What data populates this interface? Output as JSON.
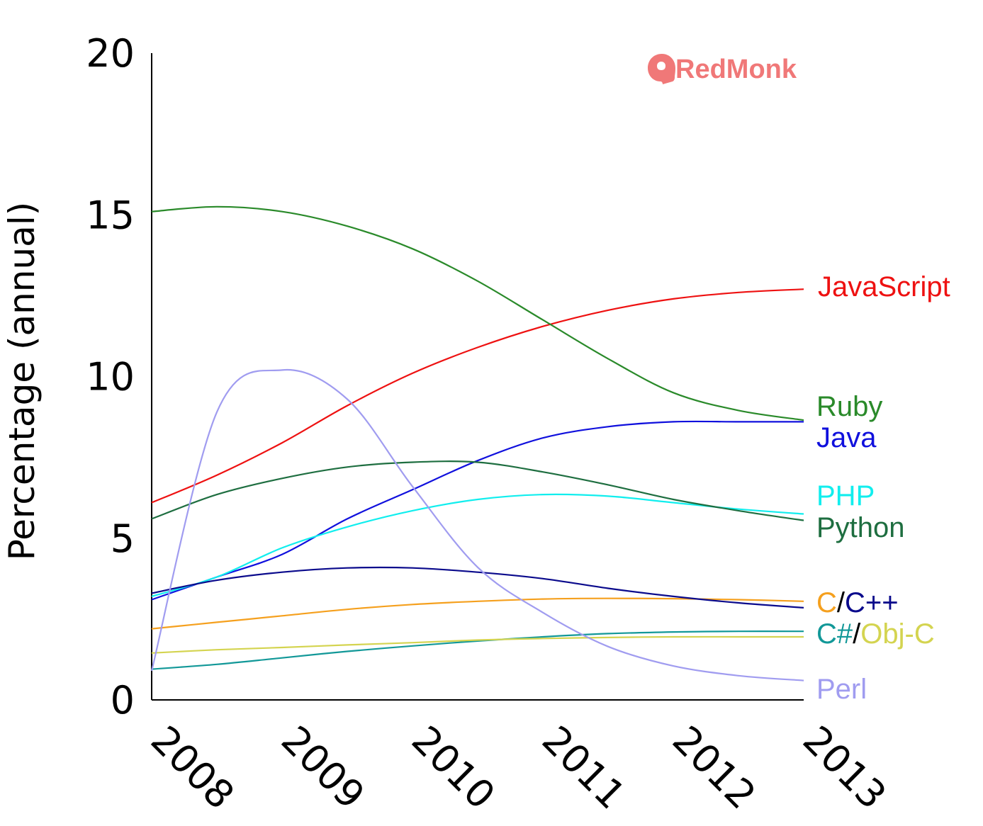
{
  "chart_data": {
    "type": "line",
    "title": "",
    "xlabel": "",
    "ylabel": "Percentage (annual)",
    "xlim": [
      2008,
      2013
    ],
    "ylim": [
      0,
      20
    ],
    "yticks": [
      0,
      5,
      10,
      15,
      20
    ],
    "xticks": [
      2008,
      2009,
      2010,
      2011,
      2012,
      2013
    ],
    "grid": false,
    "legend": "direct-labels-right",
    "logo": {
      "text": "RedMonk",
      "color": "#f07878"
    },
    "x": [
      2008,
      2008.5,
      2009,
      2009.5,
      2010,
      2010.5,
      2011,
      2011.5,
      2012,
      2012.5,
      2013
    ],
    "series": [
      {
        "name": "JavaScript",
        "color": "#ee1111",
        "values": [
          6.1,
          6.95,
          7.95,
          9.1,
          10.1,
          10.9,
          11.55,
          12.05,
          12.4,
          12.6,
          12.7
        ]
      },
      {
        "name": "Ruby",
        "color": "#2a8a2a",
        "values": [
          15.1,
          15.25,
          15.1,
          14.65,
          13.95,
          12.95,
          11.75,
          10.55,
          9.5,
          8.95,
          8.65
        ]
      },
      {
        "name": "Java",
        "color": "#1010dd",
        "values": [
          3.1,
          3.8,
          4.5,
          5.6,
          6.5,
          7.4,
          8.1,
          8.45,
          8.6,
          8.6,
          8.6
        ]
      },
      {
        "name": "PHP",
        "color": "#11eeee",
        "values": [
          3.2,
          3.8,
          4.7,
          5.35,
          5.85,
          6.2,
          6.35,
          6.3,
          6.1,
          5.9,
          5.75
        ]
      },
      {
        "name": "Python",
        "color": "#1e6e40",
        "values": [
          5.6,
          6.35,
          6.85,
          7.2,
          7.35,
          7.35,
          7.05,
          6.65,
          6.2,
          5.85,
          5.55
        ]
      },
      {
        "name": "C",
        "color": "#f5a01e",
        "values": [
          2.2,
          2.4,
          2.6,
          2.8,
          2.95,
          3.05,
          3.12,
          3.14,
          3.13,
          3.1,
          3.05
        ]
      },
      {
        "name": "C++",
        "color": "#0a0a8c",
        "values": [
          3.3,
          3.7,
          3.95,
          4.08,
          4.08,
          3.95,
          3.75,
          3.45,
          3.2,
          3.0,
          2.85
        ]
      },
      {
        "name": "C#",
        "color": "#129898",
        "values": [
          0.95,
          1.1,
          1.3,
          1.5,
          1.67,
          1.82,
          1.95,
          2.05,
          2.1,
          2.12,
          2.12
        ]
      },
      {
        "name": "Obj-C",
        "color": "#d4d450",
        "values": [
          1.45,
          1.55,
          1.62,
          1.7,
          1.77,
          1.85,
          1.9,
          1.93,
          1.95,
          1.95,
          1.95
        ]
      },
      {
        "name": "Perl",
        "color": "#a09cf0",
        "values": [
          0.9,
          8.9,
          10.2,
          9.3,
          6.6,
          4.1,
          2.7,
          1.65,
          1.05,
          0.75,
          0.6
        ]
      }
    ]
  }
}
